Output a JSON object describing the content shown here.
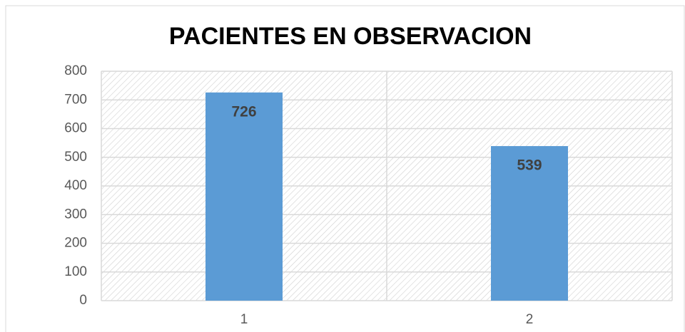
{
  "chart_data": {
    "type": "bar",
    "title": "PACIENTES  EN OBSERVACION",
    "categories": [
      "1",
      "2"
    ],
    "values": [
      726,
      539
    ],
    "color": "#5b9bd5",
    "ylim": [
      0,
      800
    ],
    "yticks": [
      0,
      100,
      200,
      300,
      400,
      500,
      600,
      700,
      800
    ],
    "grid": true
  }
}
